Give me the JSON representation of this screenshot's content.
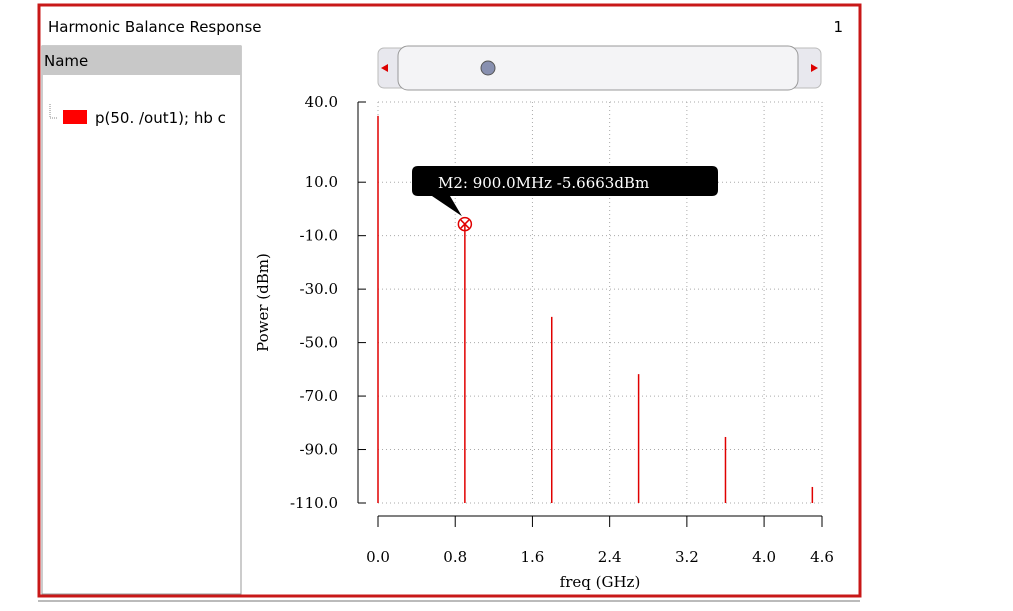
{
  "window": {
    "title": "Harmonic Balance Response",
    "number": "1"
  },
  "panel": {
    "header": "Name",
    "items": [
      "p(50. /out1); hb c"
    ]
  },
  "chart_data": {
    "type": "stem",
    "annotation": "M2: 900.0MHz -5.6663dBm",
    "x_label": "freq (GHz)",
    "y_label": "Power (dBm)",
    "series": [
      {
        "name": "p(50. /out1); hb c",
        "color": "#e00000",
        "x": [
          0,
          0.9,
          1.8,
          2.7,
          3.6,
          4.5
        ],
        "values": [
          34.8,
          -5.6663,
          -40.4,
          -61.8,
          -85.3,
          -104.0
        ]
      }
    ],
    "xlim": [
      0,
      4.6
    ],
    "xticks": [
      {
        "value": 0,
        "label": "0.0"
      },
      {
        "value": 0.8,
        "label": "0.8"
      },
      {
        "value": 1.6,
        "label": "1.6"
      },
      {
        "value": 2.4,
        "label": "2.4"
      },
      {
        "value": 3.2,
        "label": "3.2"
      },
      {
        "value": 4.0,
        "label": "4.0"
      },
      4.6
    ],
    "ylim": [
      -110,
      40
    ],
    "yticks": [
      {
        "value": 40,
        "label": "40.0"
      },
      {
        "value": 10,
        "label": "10.0"
      },
      {
        "value": -10,
        "label": "-10.0"
      },
      {
        "value": -30,
        "label": "-30.0"
      },
      {
        "value": -50,
        "label": "-50.0"
      },
      {
        "value": -70,
        "label": "-70.0"
      },
      {
        "value": -90,
        "label": "-90.0"
      },
      {
        "value": -110,
        "label": "-110.0"
      }
    ],
    "grid": true,
    "marker_index": 1
  }
}
